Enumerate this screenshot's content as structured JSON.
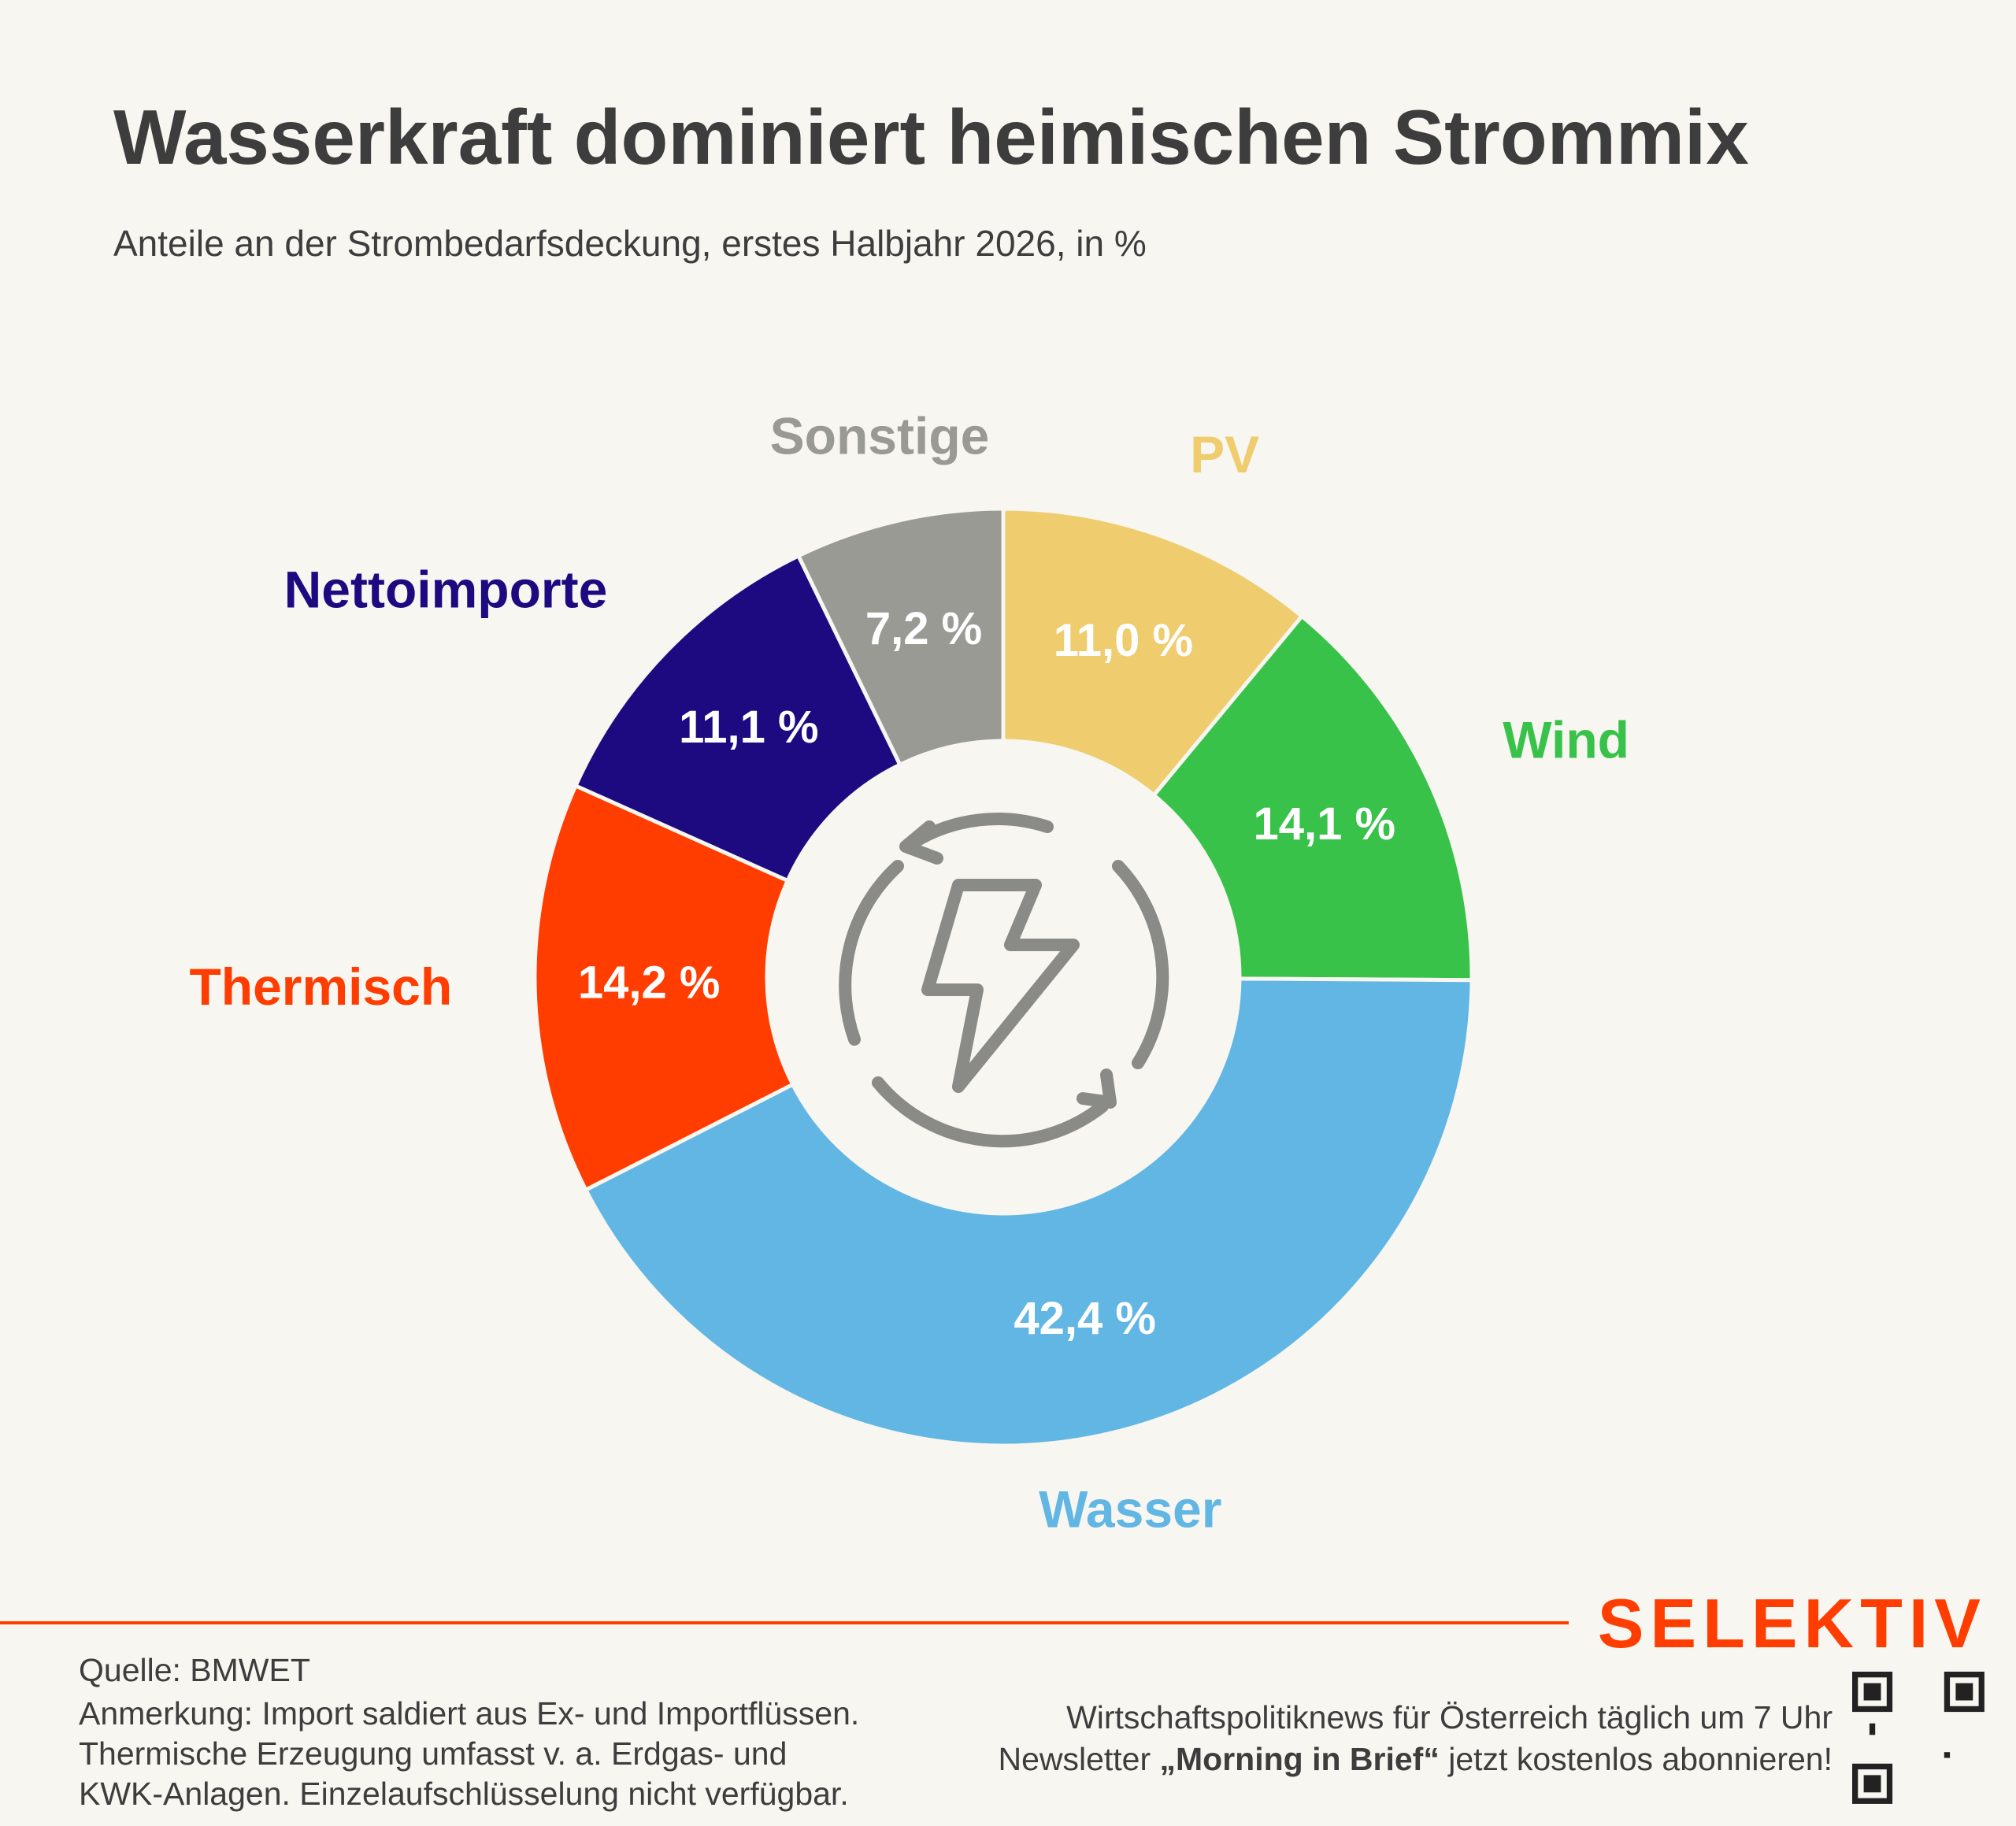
{
  "chart_data": {
    "type": "donut",
    "title": "Wasserkraft dominiert heimischen Strommix",
    "subtitle": "Anteile an der Strombedarfsdeckung, erstes Halbjahr 2026, in %",
    "categories": [
      "PV",
      "Wind",
      "Wasser",
      "Thermisch",
      "Nettoimporte",
      "Sonstige"
    ],
    "values": [
      11.0,
      14.1,
      42.4,
      14.2,
      11.1,
      7.2
    ],
    "value_labels": [
      "11,0 %",
      "14,1 %",
      "42,4 %",
      "14,2 %",
      "11,1 %",
      "7,2 %"
    ],
    "colors": [
      "#efcc6e",
      "#38c24a",
      "#62b6e4",
      "#ff3d00",
      "#1d0a80",
      "#9a9a95"
    ]
  },
  "footer": {
    "source": "Quelle: BMWET",
    "notes": [
      "Anmerkung: Import saldiert aus Ex- und Importflüssen.",
      "Thermische Erzeugung umfasst v. a. Erdgas- und",
      "KWK-Anlagen. Einzelaufschlüsselung nicht verfügbar."
    ],
    "brand": "SELEKTIV",
    "promo": "Wirtschaftspolitiknews für Österreich täglich um 7 Uhr",
    "newsletter": [
      "Newsletter ",
      "„Morning in Brief“",
      " jetzt kostenlos abonnieren!"
    ]
  }
}
